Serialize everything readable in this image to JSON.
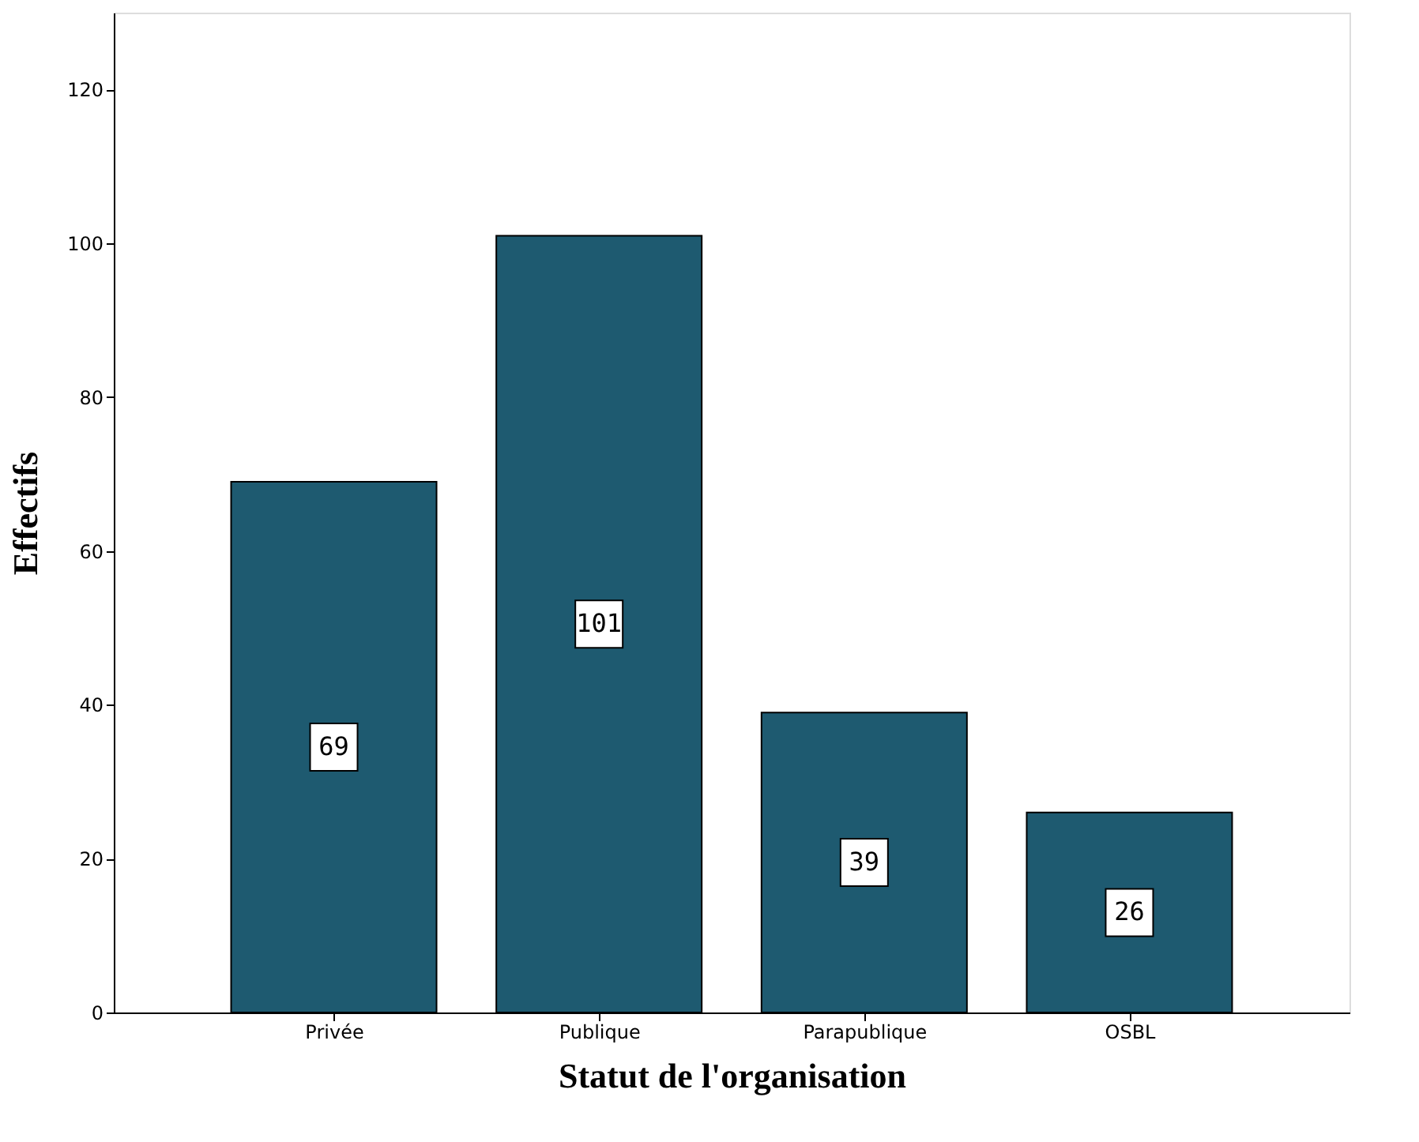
{
  "chart_data": {
    "type": "bar",
    "categories": [
      "Privée",
      "Publique",
      "Parapublique",
      "OSBL"
    ],
    "values": [
      69,
      101,
      39,
      26
    ],
    "color": "#1e5a70",
    "xlabel": "Statut de l'organisation",
    "ylabel": "Effectifs",
    "ylim": [
      0,
      130
    ],
    "yticks": [
      0,
      20,
      40,
      60,
      80,
      100,
      120
    ],
    "grid": false,
    "data_labels": true
  }
}
